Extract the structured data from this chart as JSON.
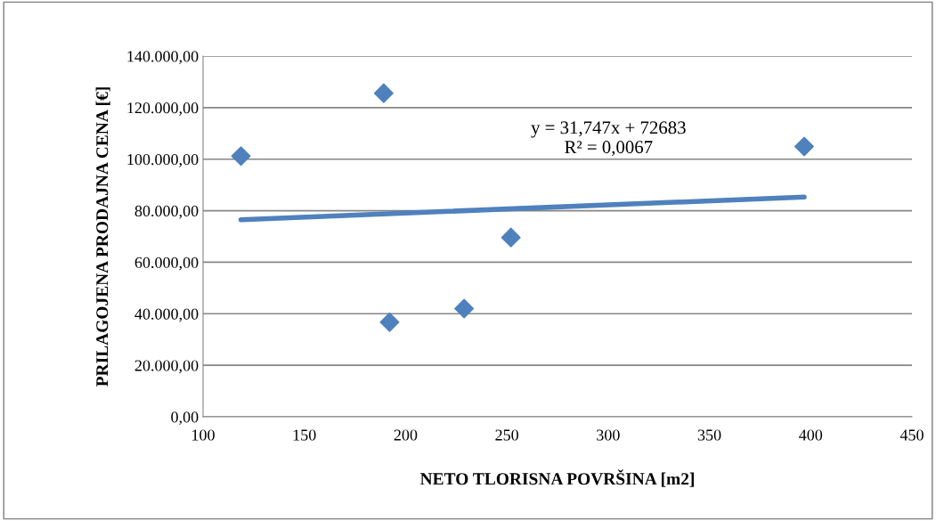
{
  "chart_data": {
    "type": "scatter",
    "xlabel": "NETO TLORISNA POVRŠINA [m2]",
    "ylabel": "PRILAGOJENA PRODAJNA CENA [€]",
    "series": [
      {
        "color": "#4f81bd",
        "marker": "diamond",
        "x": [
          118.7,
          189.2,
          192.1,
          228.9,
          252.0,
          396.8
        ],
        "values": [
          101200,
          125600,
          36700,
          42000,
          69600,
          104900
        ]
      },
      {
        "type": "line",
        "color": "#4f81bd",
        "marker": "none",
        "x": [
          118.7,
          396.8
        ],
        "values": [
          76500,
          85300
        ]
      }
    ],
    "annotations": [
      "y = 31,747x + 72683\nR² = 0,0067"
    ],
    "xlim": [
      100,
      450
    ],
    "xticks": [
      100,
      150,
      200,
      250,
      300,
      350,
      400,
      450
    ],
    "ylim": [
      0,
      140000
    ],
    "yticks": [
      {
        "value": 0,
        "label": "0,00"
      },
      {
        "value": 20000,
        "label": "20.000,00"
      },
      {
        "value": 40000,
        "label": "40.000,00"
      },
      {
        "value": 60000,
        "label": "60.000,00"
      },
      {
        "value": 80000,
        "label": "80.000,00"
      },
      {
        "value": 100000,
        "label": "100.000,00"
      },
      {
        "value": 120000,
        "label": "120.000,00"
      },
      {
        "value": 140000,
        "label": "140.000,00"
      }
    ],
    "grid": "y",
    "legend": false
  }
}
